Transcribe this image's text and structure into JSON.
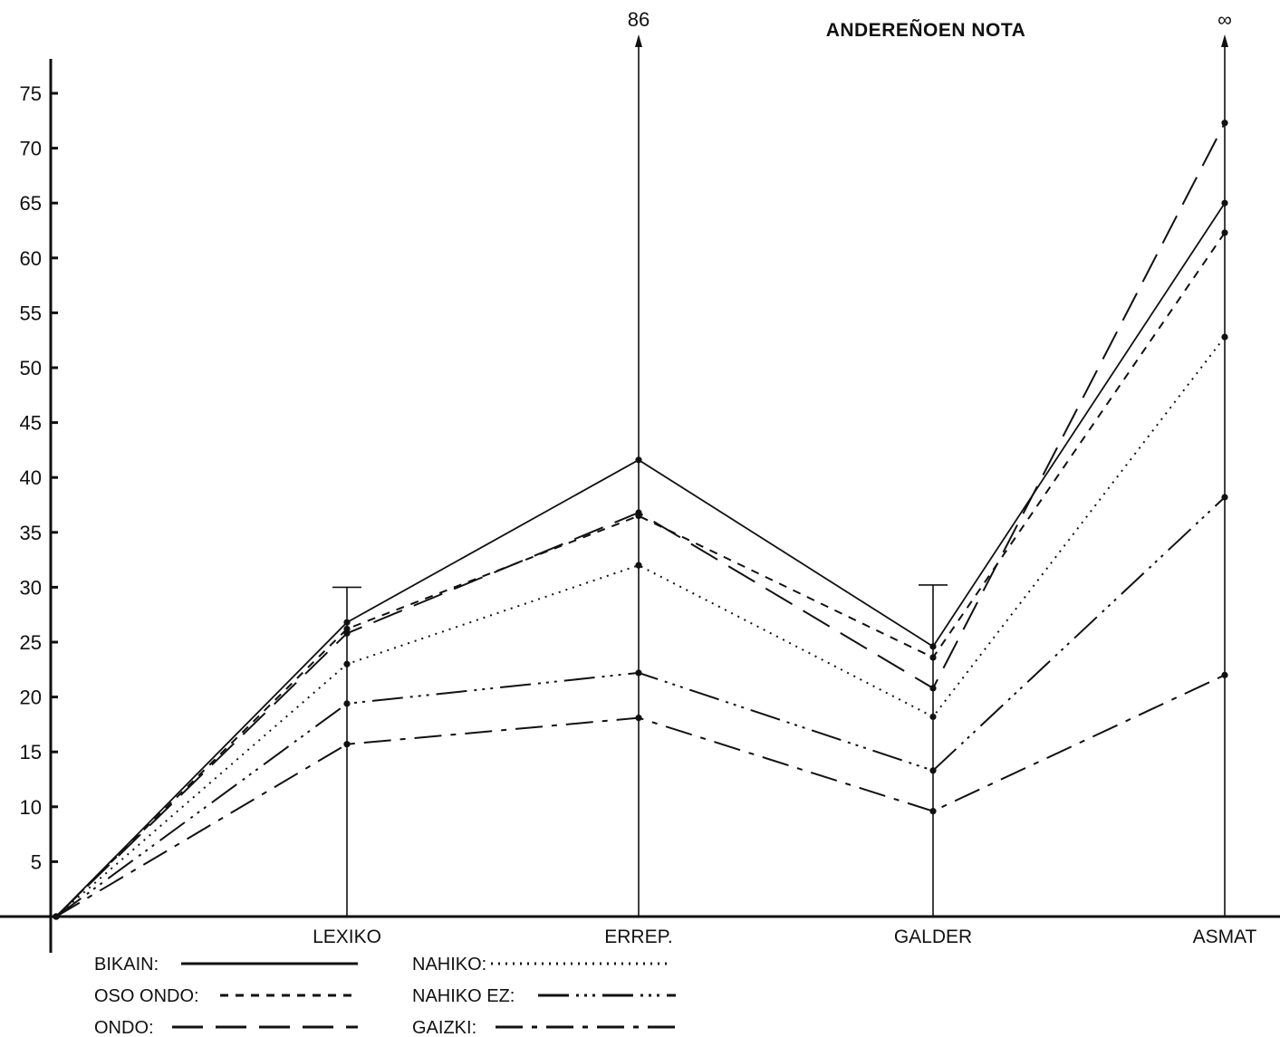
{
  "chart_data": {
    "type": "line",
    "title": "ANDEREÑOEN NOTA",
    "xlabel": "",
    "ylabel": "",
    "categories": [
      "",
      "LEXIKO",
      "ERREP.",
      "GALDER",
      "ASMAT"
    ],
    "yticks": [
      5,
      10,
      15,
      20,
      25,
      30,
      35,
      40,
      45,
      50,
      55,
      60,
      65,
      70,
      75
    ],
    "ylim": [
      0,
      78
    ],
    "grid": false,
    "legend_position": "bottom-left",
    "top_annotations": [
      {
        "category": "ERREP.",
        "text": "86"
      },
      {
        "category": "ASMAT",
        "text": "∞"
      }
    ],
    "error_caps": [
      {
        "category": "LEXIKO",
        "value": 30
      },
      {
        "category": "GALDER",
        "value": 30.2
      }
    ],
    "series": [
      {
        "name": "BIKAIN",
        "style": "solid",
        "values": [
          0,
          26.8,
          41.6,
          24.6,
          65.0
        ]
      },
      {
        "name": "OSO ONDO",
        "style": "dashed",
        "values": [
          0,
          26.2,
          36.5,
          23.6,
          62.3
        ]
      },
      {
        "name": "ONDO",
        "style": "longdash",
        "values": [
          0,
          25.8,
          36.8,
          20.8,
          72.3
        ]
      },
      {
        "name": "NAHIKO",
        "style": "dotted",
        "values": [
          0,
          23.0,
          32.0,
          18.2,
          52.8
        ]
      },
      {
        "name": "NAHIKO EZ",
        "style": "dashdotdot",
        "values": [
          0,
          19.4,
          22.2,
          13.3,
          38.2
        ]
      },
      {
        "name": "GAIZKI",
        "style": "dashdot",
        "values": [
          0,
          15.7,
          18.1,
          9.6,
          22.0
        ]
      }
    ]
  }
}
